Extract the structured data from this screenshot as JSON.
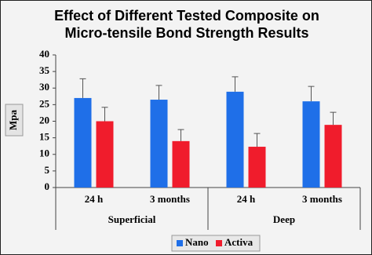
{
  "chart_data": {
    "type": "bar",
    "title": "Effect of Different Tested Composite on Micro-tensile Bond Strength Results",
    "y_label": "Mpa",
    "groups": [
      {
        "name": "Superficial",
        "categories": [
          "24 h",
          "3 months"
        ]
      },
      {
        "name": "Deep",
        "categories": [
          "24 h",
          "3 months"
        ]
      }
    ],
    "series": [
      {
        "name": "Nano",
        "color": "#1f6fe8",
        "values": [
          27,
          26.5,
          28.9,
          26
        ],
        "errors": [
          5.8,
          4.3,
          4.5,
          4.5
        ]
      },
      {
        "name": "Activa",
        "color": "#f01c2c",
        "values": [
          20,
          14,
          12.3,
          18.9
        ],
        "errors": [
          4.2,
          3.5,
          4,
          3.8
        ]
      }
    ],
    "ylim": [
      0,
      40
    ],
    "yticks": [
      0,
      5,
      10,
      15,
      20,
      25,
      30,
      35,
      40
    ],
    "grid": false,
    "legend": "bottom"
  }
}
